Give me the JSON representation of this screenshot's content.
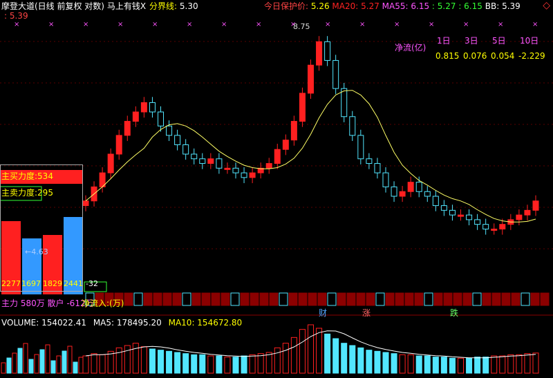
{
  "header": {
    "title": "摩登大道(日线 前复权 对数)",
    "flag": "马上有钱X",
    "sep_label": "分界线:",
    "sep_value": "5.30",
    "prev_close": ": 5.39",
    "today_label": "今日保护价:",
    "today_value": "5.26",
    "ma20_label": "MA20:",
    "ma20_value": "5.27",
    "ma55_label": "MA55:",
    "ma55_value": "6.15",
    "extra1": ": 5.27",
    "extra2": ": 6.15",
    "bb_label": "BB:",
    "bb_value": "5.39",
    "high_tag": "8.75"
  },
  "net_flow": {
    "title": "净流(亿)",
    "periods": [
      "1日",
      "3日",
      "5日",
      "10日"
    ],
    "values": [
      "0.815",
      "0.076",
      "0.054",
      "-2.229"
    ]
  },
  "left_panel": {
    "force_a": "主买力度:534",
    "force_b": "主卖力度:295",
    "arrow_value": "←4.63",
    "bottom_values": [
      "2277",
      "1697",
      "1829",
      "2441",
      "-32"
    ]
  },
  "bottom_info": {
    "main_label": "主力 580万 散户 -612万",
    "net_in": "净流入:(万)"
  },
  "events": [
    "财",
    "涨",
    "跌"
  ],
  "volume": {
    "text": "VOLUME: 154022.41",
    "ma5": "MA5: 178495.20",
    "ma10": "MA10: 154672.80"
  },
  "colors": {
    "up": "#ff2020",
    "down": "#52e6ff",
    "ma": "#ffff66",
    "grid": "#7a0000"
  },
  "chart_data": {
    "type": "candlestick",
    "ylim": [
      4.5,
      9.0
    ],
    "closes": [
      5.3,
      5.6,
      5.9,
      6.3,
      6.7,
      7.0,
      7.2,
      7.4,
      7.2,
      6.9,
      6.7,
      6.5,
      6.3,
      6.2,
      6.1,
      6.2,
      6.0,
      6.0,
      5.9,
      5.8,
      5.9,
      6.0,
      6.1,
      6.4,
      6.6,
      7.0,
      7.6,
      8.2,
      8.7,
      8.3,
      7.7,
      7.1,
      6.7,
      6.2,
      6.1,
      5.9,
      5.6,
      5.4,
      5.5,
      5.7,
      5.5,
      5.4,
      5.2,
      5.1,
      5.0,
      5.0,
      4.9,
      4.8,
      4.7,
      4.7,
      4.8,
      4.9,
      5.0,
      5.1,
      5.3
    ],
    "volumes": [
      150,
      170,
      160,
      190,
      220,
      240,
      260,
      230,
      210,
      200,
      190,
      180,
      170,
      160,
      160,
      150,
      150,
      140,
      140,
      150,
      160,
      170,
      180,
      220,
      260,
      310,
      380,
      420,
      390,
      340,
      300,
      260,
      240,
      220,
      200,
      190,
      180,
      170,
      160,
      160,
      150,
      150,
      140,
      140,
      130,
      130,
      130,
      140,
      140,
      150,
      150,
      160,
      160,
      170,
      175
    ]
  }
}
